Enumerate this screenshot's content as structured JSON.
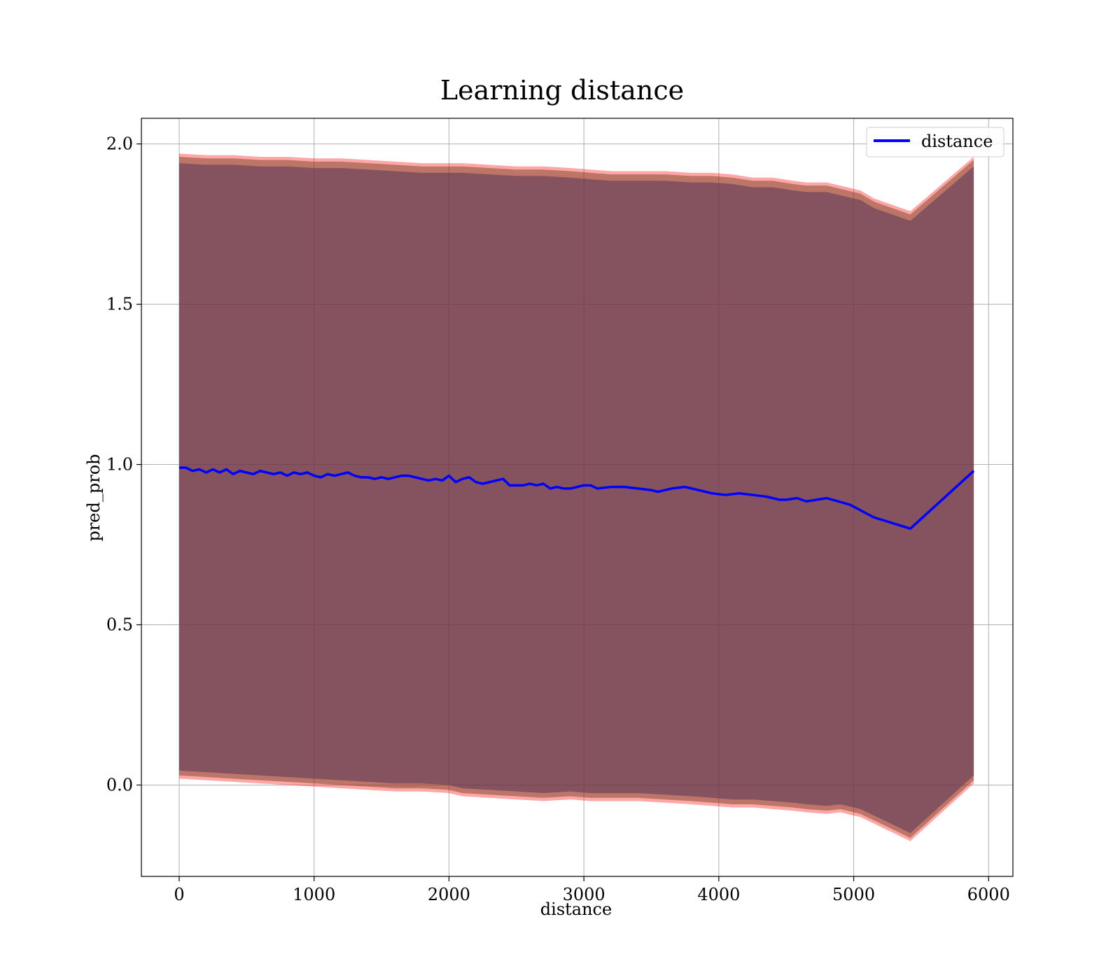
{
  "chart_data": {
    "type": "line",
    "title": "Learning distance",
    "xlabel": "distance",
    "ylabel": "pred_prob",
    "xlim": [
      -280,
      6180
    ],
    "ylim": [
      -0.285,
      2.08
    ],
    "xticks": [
      0,
      1000,
      2000,
      3000,
      4000,
      5000,
      6000
    ],
    "xtick_labels": [
      "0",
      "1000",
      "2000",
      "3000",
      "4000",
      "5000",
      "6000"
    ],
    "yticks": [
      0.0,
      0.5,
      1.0,
      1.5,
      2.0
    ],
    "ytick_labels": [
      "0.0",
      "0.5",
      "1.0",
      "1.5",
      "2.0"
    ],
    "grid": true,
    "legend": {
      "position": "top-right",
      "entries": [
        "distance"
      ]
    },
    "series": [
      {
        "name": "distance",
        "color": "#0000ff",
        "x": [
          0,
          50,
          100,
          150,
          200,
          250,
          300,
          350,
          400,
          450,
          500,
          550,
          600,
          650,
          700,
          750,
          800,
          850,
          900,
          950,
          1000,
          1050,
          1100,
          1150,
          1200,
          1250,
          1300,
          1350,
          1400,
          1450,
          1500,
          1550,
          1600,
          1650,
          1700,
          1750,
          1800,
          1850,
          1900,
          1950,
          2000,
          2050,
          2100,
          2150,
          2200,
          2250,
          2300,
          2350,
          2400,
          2450,
          2500,
          2550,
          2600,
          2650,
          2700,
          2750,
          2800,
          2850,
          2900,
          2950,
          3000,
          3050,
          3100,
          3200,
          3300,
          3400,
          3500,
          3550,
          3650,
          3750,
          3850,
          3950,
          4050,
          4150,
          4250,
          4350,
          4450,
          4500,
          4580,
          4650,
          4800,
          4970,
          5150,
          5420,
          5890
        ],
        "y": [
          0.99,
          0.99,
          0.98,
          0.985,
          0.975,
          0.985,
          0.975,
          0.985,
          0.97,
          0.98,
          0.975,
          0.97,
          0.98,
          0.975,
          0.97,
          0.975,
          0.965,
          0.975,
          0.97,
          0.975,
          0.965,
          0.96,
          0.97,
          0.965,
          0.97,
          0.975,
          0.965,
          0.96,
          0.96,
          0.955,
          0.96,
          0.955,
          0.96,
          0.965,
          0.965,
          0.96,
          0.955,
          0.95,
          0.955,
          0.95,
          0.965,
          0.945,
          0.955,
          0.96,
          0.945,
          0.94,
          0.945,
          0.95,
          0.955,
          0.935,
          0.935,
          0.935,
          0.94,
          0.935,
          0.94,
          0.925,
          0.93,
          0.925,
          0.925,
          0.93,
          0.935,
          0.935,
          0.925,
          0.93,
          0.93,
          0.925,
          0.92,
          0.915,
          0.925,
          0.93,
          0.92,
          0.91,
          0.905,
          0.91,
          0.905,
          0.9,
          0.89,
          0.89,
          0.895,
          0.885,
          0.895,
          0.875,
          0.835,
          0.8,
          0.98
        ]
      }
    ],
    "bands": [
      {
        "name": "",
        "color": "#ff0000",
        "upper": [
          1.97,
          1.965,
          1.965,
          1.96,
          1.96,
          1.955,
          1.955,
          1.95,
          1.945,
          1.94,
          1.94,
          1.94,
          1.935,
          1.93,
          1.93,
          1.925,
          1.92,
          1.915,
          1.915,
          1.915,
          1.91,
          1.91,
          1.905,
          1.895,
          1.895,
          1.885,
          1.88,
          1.88,
          1.87,
          1.865,
          1.86,
          1.855,
          1.83,
          1.79,
          1.96
        ],
        "lower": [
          0.02,
          0.015,
          0.01,
          0.005,
          0.0,
          -0.005,
          -0.01,
          -0.015,
          -0.02,
          -0.02,
          -0.025,
          -0.035,
          -0.04,
          -0.045,
          -0.05,
          -0.045,
          -0.05,
          -0.05,
          -0.05,
          -0.055,
          -0.06,
          -0.065,
          -0.07,
          -0.07,
          -0.075,
          -0.08,
          -0.085,
          -0.09,
          -0.085,
          -0.09,
          -0.095,
          -0.1,
          -0.12,
          -0.175,
          0.005
        ]
      },
      {
        "name": "",
        "color": "#6b3a1a",
        "upper": [
          1.96,
          1.955,
          1.955,
          1.95,
          1.95,
          1.945,
          1.945,
          1.94,
          1.935,
          1.93,
          1.93,
          1.93,
          1.925,
          1.92,
          1.92,
          1.915,
          1.91,
          1.905,
          1.905,
          1.905,
          1.9,
          1.9,
          1.895,
          1.885,
          1.885,
          1.875,
          1.87,
          1.87,
          1.86,
          1.855,
          1.85,
          1.845,
          1.82,
          1.78,
          1.95
        ],
        "lower": [
          0.03,
          0.025,
          0.02,
          0.015,
          0.01,
          0.005,
          0.0,
          -0.005,
          -0.01,
          -0.01,
          -0.015,
          -0.025,
          -0.03,
          -0.035,
          -0.04,
          -0.035,
          -0.04,
          -0.04,
          -0.04,
          -0.045,
          -0.05,
          -0.055,
          -0.06,
          -0.06,
          -0.065,
          -0.07,
          -0.075,
          -0.08,
          -0.075,
          -0.08,
          -0.085,
          -0.09,
          -0.11,
          -0.165,
          0.015
        ]
      },
      {
        "name": "",
        "color": "#603a5c",
        "upper": [
          1.94,
          1.935,
          1.935,
          1.93,
          1.93,
          1.925,
          1.925,
          1.92,
          1.915,
          1.91,
          1.91,
          1.91,
          1.905,
          1.9,
          1.9,
          1.895,
          1.89,
          1.885,
          1.885,
          1.885,
          1.88,
          1.88,
          1.875,
          1.865,
          1.865,
          1.855,
          1.85,
          1.85,
          1.84,
          1.835,
          1.83,
          1.825,
          1.8,
          1.76,
          1.93
        ],
        "lower": [
          0.045,
          0.04,
          0.035,
          0.03,
          0.025,
          0.02,
          0.015,
          0.01,
          0.005,
          0.005,
          0.0,
          -0.01,
          -0.015,
          -0.02,
          -0.025,
          -0.02,
          -0.025,
          -0.025,
          -0.025,
          -0.03,
          -0.035,
          -0.04,
          -0.045,
          -0.045,
          -0.05,
          -0.055,
          -0.06,
          -0.065,
          -0.06,
          -0.065,
          -0.07,
          -0.075,
          -0.095,
          -0.15,
          0.03
        ]
      }
    ],
    "band_x": [
      0,
      200,
      400,
      600,
      800,
      1000,
      1200,
      1400,
      1600,
      1800,
      2000,
      2100,
      2300,
      2500,
      2700,
      2900,
      3050,
      3200,
      3400,
      3600,
      3800,
      3950,
      4100,
      4250,
      4400,
      4550,
      4650,
      4800,
      4900,
      4950,
      5000,
      5050,
      5150,
      5420,
      5890
    ]
  }
}
